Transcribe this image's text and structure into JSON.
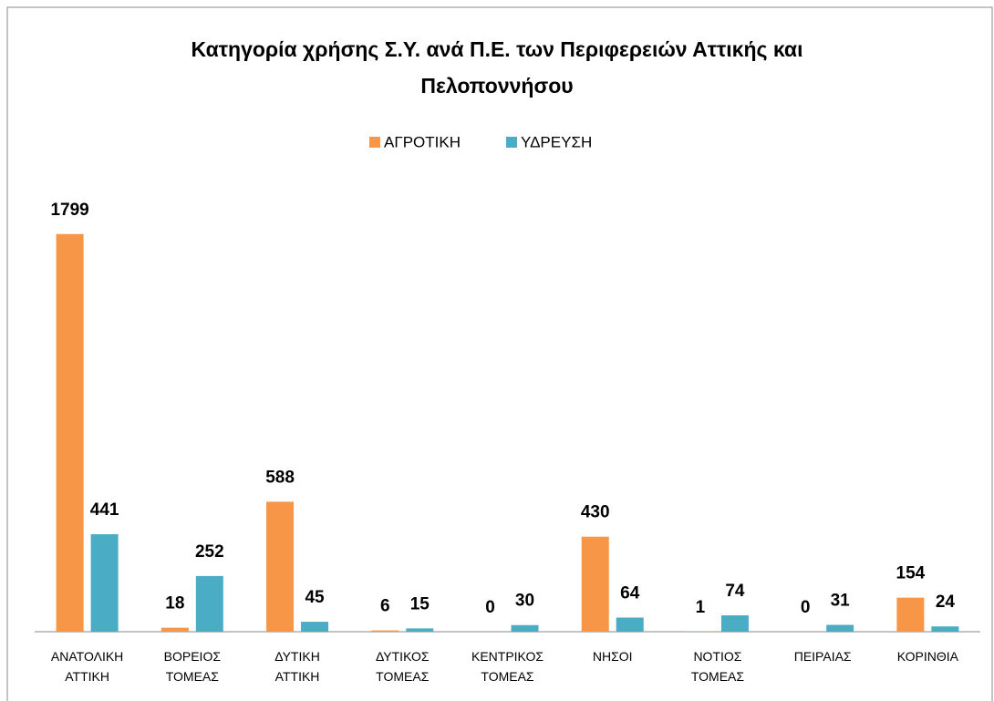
{
  "chart_data": {
    "type": "bar",
    "title": "Κατηγορία χρήσης Σ.Υ. ανά Π.Ε. των Περιφερειών Αττικής και Πελοποννήσου",
    "categories": [
      "ΑΝΑΤΟΛΙΚΗ ΑΤΤΙΚΗ",
      "ΒΟΡΕΙΟΣ ΤΟΜΕΑΣ",
      "ΔΥΤΙΚΗ ΑΤΤΙΚΗ",
      "ΔΥΤΙΚΟΣ ΤΟΜΕΑΣ",
      "ΚΕΝΤΡΙΚΟΣ ΤΟΜΕΑΣ",
      "ΝΗΣΟΙ",
      "ΝΟΤΙΟΣ ΤΟΜΕΑΣ",
      "ΠΕΙΡΑΙΑΣ",
      "ΚΟΡΙΝΘΙΑ"
    ],
    "series": [
      {
        "name": "ΑΓΡΟΤΙΚΗ",
        "color": "#f79646",
        "values": [
          1799,
          18,
          588,
          6,
          0,
          430,
          1,
          0,
          154
        ]
      },
      {
        "name": "ΥΔΡΕΥΣΗ",
        "color": "#4bacc6",
        "values": [
          441,
          252,
          45,
          15,
          30,
          64,
          74,
          31,
          24
        ]
      }
    ],
    "ylim": [
      0,
      2000
    ],
    "legend": "top"
  }
}
